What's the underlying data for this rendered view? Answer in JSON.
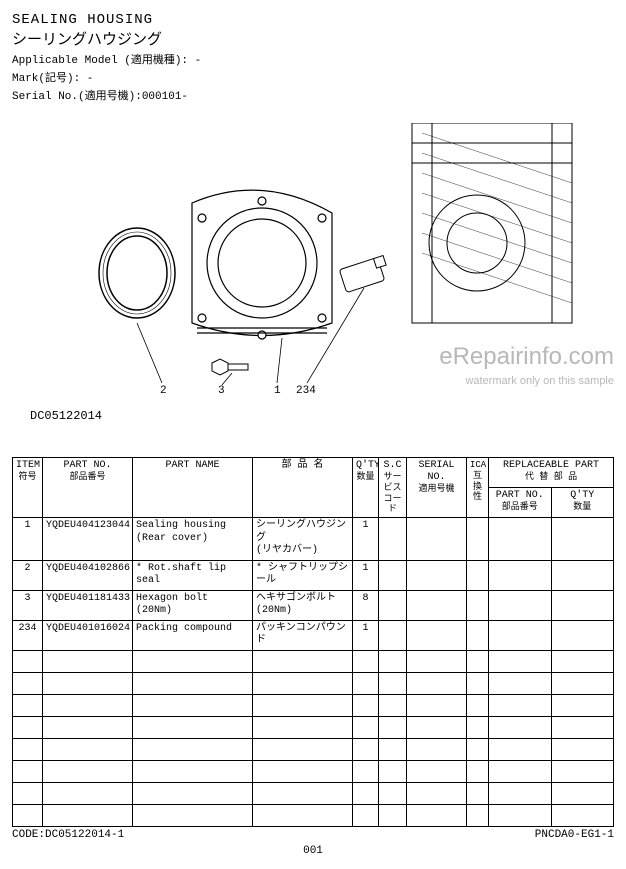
{
  "header": {
    "title_en": "SEALING HOUSING",
    "title_jp": "シーリングハウジング",
    "applicable_model_label": "Applicable Model (適用機種): -",
    "mark_label": "Mark(記号): -",
    "serial_label": "Serial No.(適用号機):000101-"
  },
  "diagram": {
    "code": "DC05122014",
    "callouts": [
      "2",
      "3",
      "1",
      "234"
    ],
    "watermark_main": "eRepairinfo.com",
    "watermark_sub": "watermark only on this sample",
    "line_color": "#000000",
    "bg_color": "#ffffff"
  },
  "table": {
    "headers": {
      "item": "ITEM",
      "item_jp": "符号",
      "partno": "PART NO.",
      "partno_jp": "部品番号",
      "name": "PART NAME",
      "name_jp_h": "部 品 名",
      "qty": "Q'TY",
      "qty_jp": "数量",
      "sc": "S.C",
      "sc_jp": "サービスコード",
      "serial": "SERIAL NO.",
      "serial_jp": "適用号機",
      "ica": "ICA互換性",
      "rep": "REPLACEABLE PART",
      "rep_jp": "代 替 部 品",
      "rep_pn": "PART NO.",
      "rep_pn_jp": "部品番号",
      "rep_qty": "Q'TY",
      "rep_qty_jp": "数量"
    },
    "rows": [
      {
        "item": "1",
        "partno": "YQDEU404123044",
        "name_en": "Sealing housing\n(Rear cover)",
        "name_jp": "シーリングハウジング\n(リヤカバー)",
        "qty": "1",
        "sc": "",
        "serial": "",
        "ica": "",
        "rep_pn": "",
        "rep_qty": ""
      },
      {
        "item": "2",
        "partno": "YQDEU404102866",
        "name_en": "* Rot.shaft lip seal",
        "name_jp": "* シャフトリップシール",
        "qty": "1",
        "sc": "",
        "serial": "",
        "ica": "",
        "rep_pn": "",
        "rep_qty": ""
      },
      {
        "item": "3",
        "partno": "YQDEU401181433",
        "name_en": "Hexagon bolt\n(20Nm)",
        "name_jp": "ヘキサゴンボルト\n(20Nm)",
        "qty": "8",
        "sc": "",
        "serial": "",
        "ica": "",
        "rep_pn": "",
        "rep_qty": ""
      },
      {
        "item": "234",
        "partno": "YQDEU401016024",
        "name_en": "Packing compound",
        "name_jp": "パッキンコンパウンド",
        "qty": "1",
        "sc": "",
        "serial": "",
        "ica": "",
        "rep_pn": "",
        "rep_qty": ""
      }
    ],
    "empty_rows": 8,
    "border_color": "#000000",
    "font_size": 10
  },
  "footer": {
    "code_left": "CODE:DC05122014-1",
    "code_right": "PNCDA0-EG1-1",
    "page": "001"
  }
}
